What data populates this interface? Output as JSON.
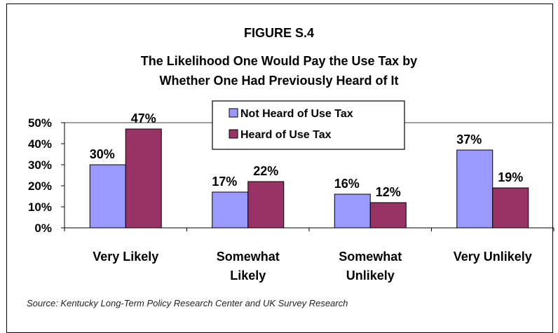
{
  "chart_data": {
    "type": "bar",
    "title": "FIGURE S.4",
    "subtitle_lines": [
      "The Likelihood One Would Pay the Use Tax by",
      "Whether One Had Previously Heard of It"
    ],
    "categories": [
      "Very Likely",
      "Somewhat Likely",
      "Somewhat Unlikely",
      "Very Unlikely"
    ],
    "category_lines": [
      [
        "Very Likely"
      ],
      [
        "Somewhat",
        "Likely"
      ],
      [
        "Somewhat",
        "Unlikely"
      ],
      [
        "Very Unlikely"
      ]
    ],
    "series": [
      {
        "name": "Not Heard of Use Tax",
        "values": [
          30,
          17,
          16,
          37
        ],
        "color": "#9999ff"
      },
      {
        "name": "Heard of Use Tax",
        "values": [
          47,
          22,
          12,
          19
        ],
        "color": "#993366"
      }
    ],
    "data_labels": [
      [
        "30%",
        "17%",
        "16%",
        "37%"
      ],
      [
        "47%",
        "22%",
        "12%",
        "19%"
      ]
    ],
    "ylim": [
      0,
      50
    ],
    "yticks": [
      0,
      10,
      20,
      30,
      40,
      50
    ],
    "ytick_labels": [
      "0%",
      "10%",
      "20%",
      "30%",
      "40%",
      "50%"
    ],
    "grid": true,
    "legend_position": "top-center",
    "xlabel": "",
    "ylabel": ""
  },
  "source": "Source: Kentucky Long-Term Policy Research Center and UK Survey Research"
}
